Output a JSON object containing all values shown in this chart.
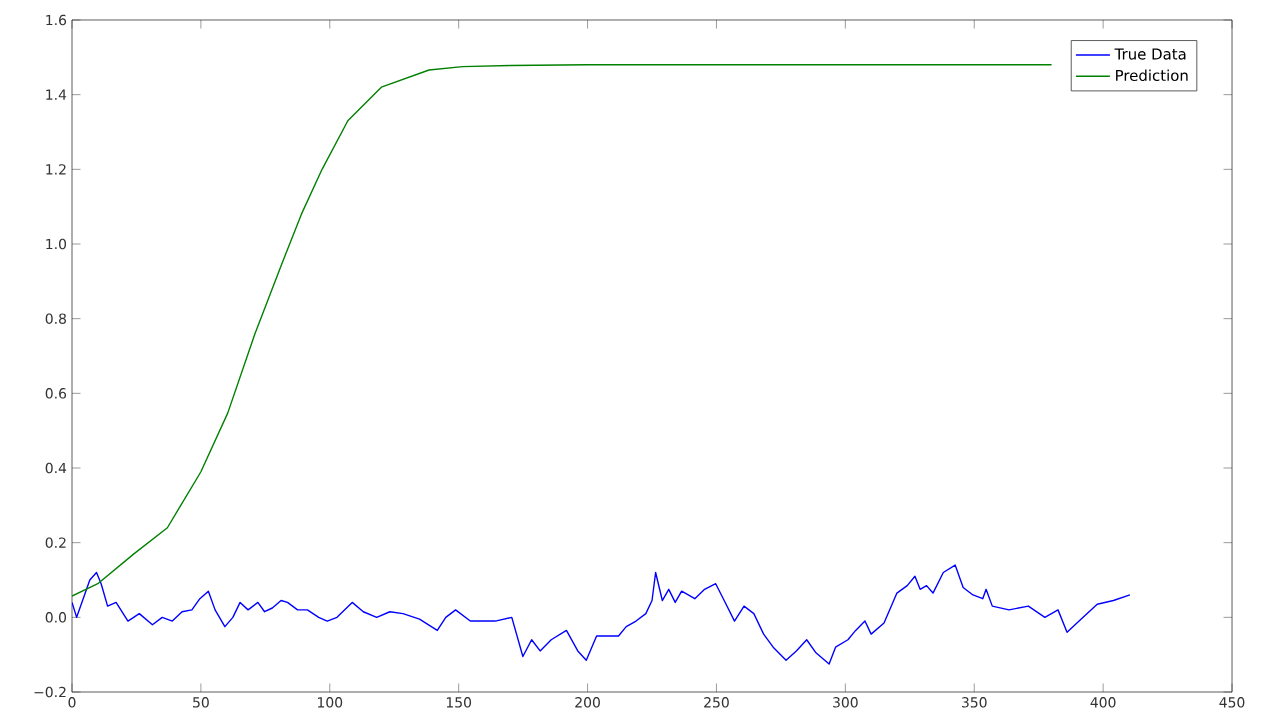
{
  "chart_data": {
    "type": "line",
    "xlim": [
      0,
      450
    ],
    "ylim": [
      -0.2,
      1.6
    ],
    "xticks": [
      0,
      50,
      100,
      150,
      200,
      250,
      300,
      350,
      400,
      450
    ],
    "yticks": [
      {
        "value": -0.2,
        "label": "−0.2"
      },
      {
        "value": 0,
        "label": "0.0"
      },
      {
        "value": 0.2,
        "label": "0.2"
      },
      {
        "value": 0.4,
        "label": "0.4"
      },
      {
        "value": 0.6,
        "label": "0.6"
      },
      {
        "value": 0.8,
        "label": "0.8"
      },
      {
        "value": 1.0,
        "label": "1.0"
      },
      {
        "value": 1.2,
        "label": "1.2"
      },
      {
        "value": 1.4,
        "label": "1.4"
      },
      {
        "value": 1.6,
        "label": "1.6"
      }
    ],
    "legend": "top right",
    "grid": false,
    "series": [
      {
        "name": "True Data",
        "color": "#0000ff",
        "x": [
          0,
          1.8,
          6.9,
          9.5,
          11.3,
          13.8,
          17.1,
          21.7,
          26.1,
          31.2,
          35,
          38.9,
          42.7,
          46.5,
          49.6,
          52.9,
          55.5,
          59.3,
          62.4,
          65.2,
          68.3,
          72.1,
          74.7,
          77.7,
          81.1,
          83.6,
          87.5,
          91.3,
          95.7,
          99,
          102.8,
          108.7,
          113,
          118.2,
          123.3,
          128.4,
          134.8,
          141.7,
          145,
          148.8,
          154.5,
          159,
          164.2,
          170.6,
          174.9,
          178.3,
          181.6,
          185.9,
          191.8,
          196.2,
          199.5,
          203.5,
          206,
          212,
          215,
          218.8,
          222.6,
          225,
          226.4,
          229,
          231.5,
          234,
          236.5,
          241.6,
          245.4,
          249.7,
          253,
          257,
          260.7,
          264.5,
          268.3,
          272,
          277,
          281,
          285,
          288.6,
          293.7,
          296.2,
          301,
          304,
          307.6,
          310,
          315,
          320,
          324,
          327,
          329,
          331.5,
          334,
          338,
          342.6,
          345.7,
          349.5,
          353.3,
          354.6,
          357,
          363.5,
          371,
          377.4,
          382.5,
          386,
          391.4,
          397.7,
          404,
          410.4
        ],
        "values": [
          0.04,
          0.0,
          0.1,
          0.12,
          0.09,
          0.03,
          0.04,
          -0.01,
          0.01,
          -0.02,
          0.0,
          -0.01,
          0.015,
          0.02,
          0.05,
          0.07,
          0.02,
          -0.025,
          0.0,
          0.04,
          0.02,
          0.04,
          0.015,
          0.025,
          0.045,
          0.04,
          0.02,
          0.02,
          0.0,
          -0.01,
          0.0,
          0.04,
          0.015,
          0.0,
          0.015,
          0.01,
          -0.005,
          -0.035,
          0.0,
          0.02,
          -0.01,
          -0.01,
          -0.01,
          0.0,
          -0.105,
          -0.06,
          -0.09,
          -0.06,
          -0.035,
          -0.09,
          -0.115,
          -0.05,
          -0.05,
          -0.05,
          -0.025,
          -0.01,
          0.01,
          0.045,
          0.12,
          0.045,
          0.075,
          0.04,
          0.07,
          0.05,
          0.075,
          0.09,
          0.045,
          -0.01,
          0.03,
          0.01,
          -0.045,
          -0.08,
          -0.115,
          -0.09,
          -0.06,
          -0.095,
          -0.125,
          -0.08,
          -0.06,
          -0.035,
          -0.01,
          -0.045,
          -0.015,
          0.065,
          0.085,
          0.11,
          0.075,
          0.085,
          0.065,
          0.12,
          0.14,
          0.08,
          0.06,
          0.05,
          0.075,
          0.03,
          0.02,
          0.03,
          0.0,
          0.02,
          -0.04,
          -0.005,
          0.035,
          0.045,
          0.06
        ]
      },
      {
        "name": "Prediction",
        "color": "#008000",
        "x": [
          0,
          10,
          24,
          37,
          50,
          60.4,
          71,
          81,
          89,
          97,
          107,
          120,
          138.5,
          151.5,
          170,
          200,
          300,
          380
        ],
        "values": [
          0.057,
          0.09,
          0.17,
          0.24,
          0.39,
          0.547,
          0.76,
          0.94,
          1.08,
          1.2,
          1.33,
          1.42,
          1.466,
          1.475,
          1.478,
          1.48,
          1.48,
          1.48
        ]
      }
    ]
  }
}
